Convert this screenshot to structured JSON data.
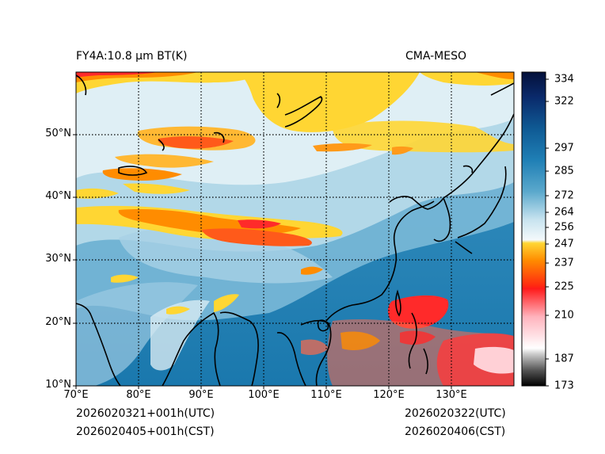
{
  "header": {
    "left_title": "FY4A:10.8 μm BT(K)",
    "right_title": "CMA-MESO"
  },
  "footer": {
    "init_utc": "2026020321+001h(UTC)",
    "init_cst": "2026020405+001h(CST)",
    "valid_utc": "2026020322(UTC)",
    "valid_cst": "2026020406(CST)"
  },
  "map": {
    "lon_range": [
      70,
      140
    ],
    "lat_range": [
      10,
      60
    ],
    "lon_ticks": [
      "70°E",
      "80°E",
      "90°E",
      "100°E",
      "110°E",
      "120°E",
      "130°E"
    ],
    "lat_ticks": [
      "10°N",
      "20°N",
      "30°N",
      "40°N",
      "50°N"
    ]
  },
  "colorbar": {
    "range": [
      173,
      336
    ],
    "ticks": [
      "334",
      "322",
      "297",
      "285",
      "272",
      "264",
      "256",
      "247",
      "237",
      "225",
      "210",
      "187",
      "173"
    ],
    "colors": {
      "cold_black": "#000000",
      "grey": "#9a9a9a",
      "white": "#ffffff",
      "pink": "#ff9aa6",
      "red": "#ff1a1a",
      "orange": "#ff8c00",
      "yellow": "#ffd633",
      "pale": "#e6f2f8",
      "light_blue": "#8ec8e0",
      "blue": "#1f7fb5",
      "navy": "#0a2a6b",
      "dark_navy": "#04103a"
    }
  }
}
